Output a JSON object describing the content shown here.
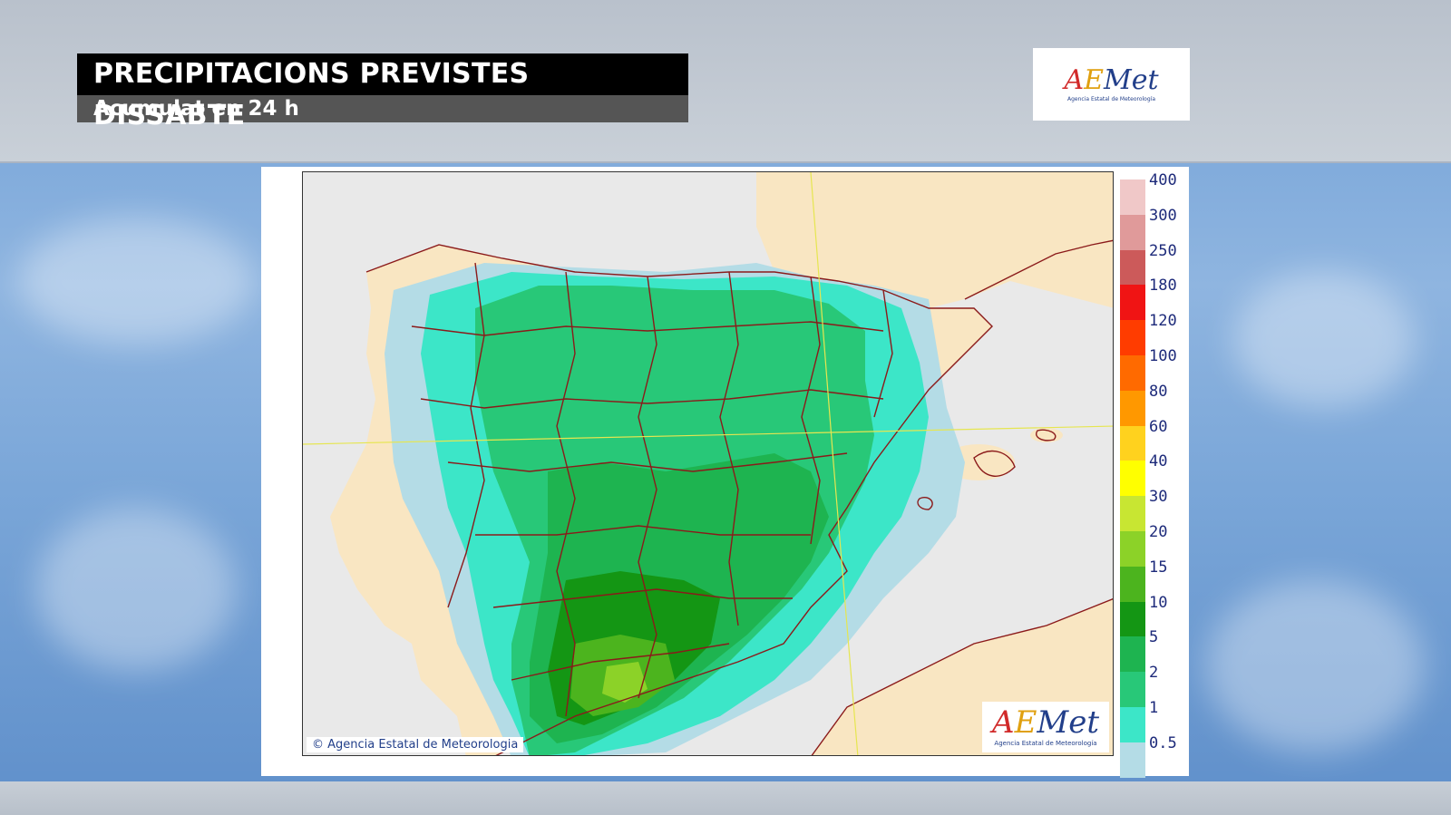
{
  "header": {
    "title": "PRECIPITACIONS PREVISTES DISSABTE",
    "subtitle": "Acumulat en 24 h"
  },
  "logo": {
    "word_a": "A",
    "word_e": "E",
    "word_rest": "Met",
    "tagline": "Agencia Estatal de Meteorología"
  },
  "map": {
    "copyright": "© Agencia Estatal de Meteorologia",
    "legend": [
      {
        "label": "400",
        "color": "#f0c8c8"
      },
      {
        "label": "300",
        "color": "#e09a9a"
      },
      {
        "label": "250",
        "color": "#cc5a5a"
      },
      {
        "label": "180",
        "color": "#f01414"
      },
      {
        "label": "120",
        "color": "#ff3c00"
      },
      {
        "label": "100",
        "color": "#ff6a00"
      },
      {
        "label": "80",
        "color": "#ff9800"
      },
      {
        "label": "60",
        "color": "#ffd21e"
      },
      {
        "label": "40",
        "color": "#ffff00"
      },
      {
        "label": "30",
        "color": "#c8e632"
      },
      {
        "label": "20",
        "color": "#8cd228"
      },
      {
        "label": "15",
        "color": "#4cb41e"
      },
      {
        "label": "10",
        "color": "#149614"
      },
      {
        "label": "5",
        "color": "#1eb450"
      },
      {
        "label": "2",
        "color": "#28c878"
      },
      {
        "label": "1",
        "color": "#3ce6c8"
      },
      {
        "label": "0.5",
        "color": "#b4dce6"
      }
    ],
    "colors": {
      "sea": "#e9e9e9",
      "land": "#f9e6c2",
      "border": "#8b1a1a",
      "graticule": "#e6e650"
    }
  }
}
